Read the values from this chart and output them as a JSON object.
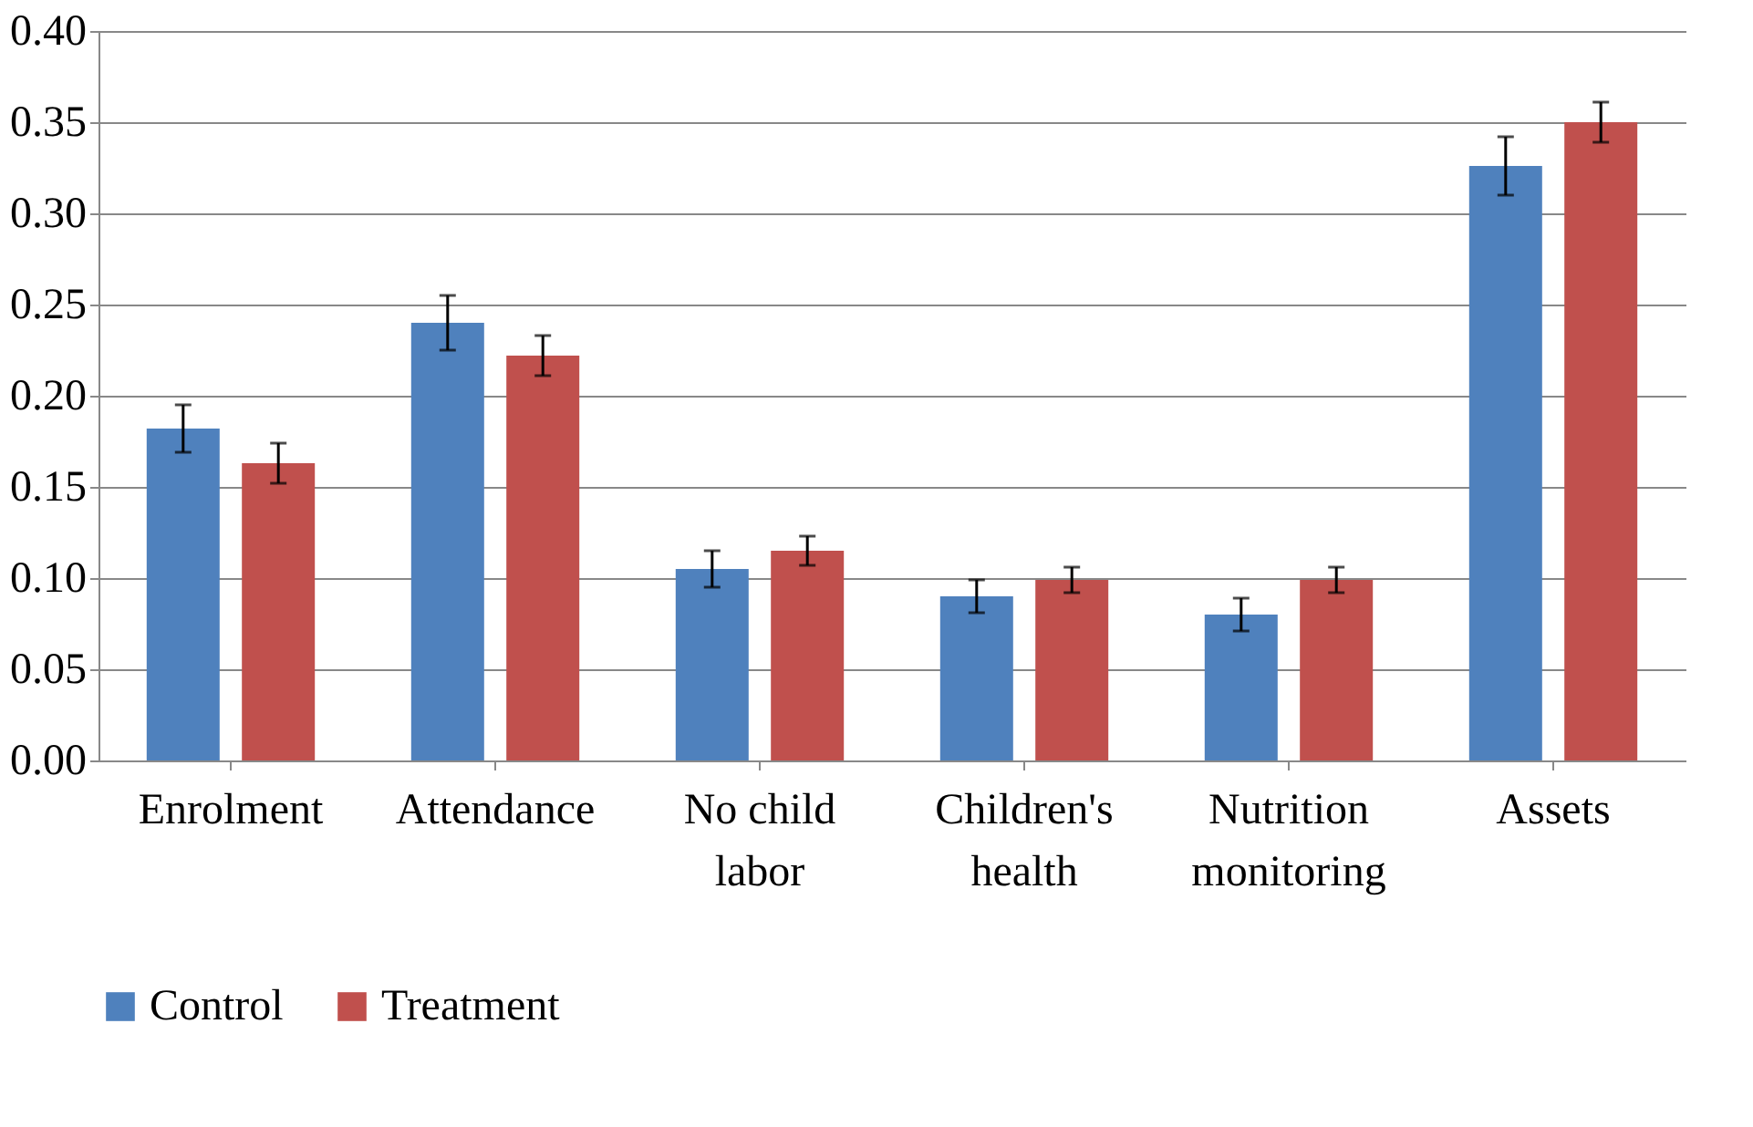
{
  "chart_data": {
    "type": "bar",
    "categories": [
      "Enrolment",
      "Attendance",
      "No child labor",
      "Children's health",
      "Nutrition monitoring",
      "Assets"
    ],
    "series": [
      {
        "name": "Control",
        "color": "#4f81bd",
        "values": [
          0.182,
          0.24,
          0.105,
          0.09,
          0.08,
          0.326
        ],
        "errors": [
          0.013,
          0.015,
          0.01,
          0.009,
          0.009,
          0.016
        ]
      },
      {
        "name": "Treatment",
        "color": "#c0504d",
        "values": [
          0.163,
          0.222,
          0.115,
          0.099,
          0.099,
          0.35
        ],
        "errors": [
          0.011,
          0.011,
          0.008,
          0.007,
          0.007,
          0.011
        ]
      }
    ],
    "ylim": [
      0,
      0.4
    ],
    "yticks": [
      {
        "value": 0,
        "label": "0.00"
      },
      {
        "value": 0.05,
        "label": "0.05"
      },
      {
        "value": 0.1,
        "label": "0.10"
      },
      {
        "value": 0.15,
        "label": "0.15"
      },
      {
        "value": 0.2,
        "label": "0.20"
      },
      {
        "value": 0.25,
        "label": "0.25"
      },
      {
        "value": 0.3,
        "label": "0.30"
      },
      {
        "value": 0.35,
        "label": "0.35"
      },
      {
        "value": 0.4,
        "label": "0.40"
      }
    ],
    "grid": "y",
    "legend": "bottom"
  }
}
